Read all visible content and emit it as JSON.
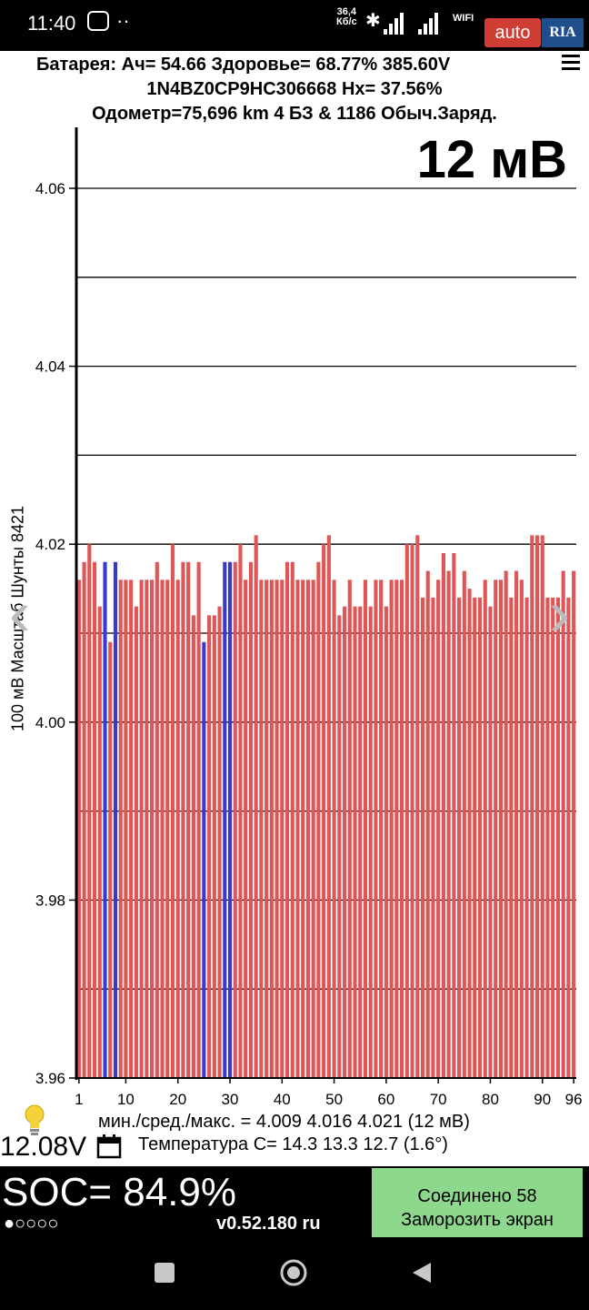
{
  "status_bar": {
    "time": "11:40",
    "dots": "··",
    "net_speed_value": "36,4",
    "net_speed_unit": "Кб/с",
    "wifi_label": "WIFI",
    "watermark_auto": "auto",
    "watermark_ria": "RIA"
  },
  "header": {
    "line1": "Батарея:  Ач= 54.66  Здоровье= 68.77%   385.60V",
    "line2": "1N4BZ0CP9HC306668   Hx= 37.56%",
    "line3": "Одометр=75,696 km 4 БЗ & 1186 Обыч.Заряд."
  },
  "chart_label": "12 мВ",
  "y_axis_label": "100 мВ Масштаб  Шунты 8421",
  "stats": {
    "minmax": "мин./сред./макс. = 4.009 4.016 4.021  (12 мВ)",
    "voltage": "12.08V",
    "temperature": "Температура С= 14.3  13.3  12.7  (1.6°)"
  },
  "bottom": {
    "soc": "SOC= 84.9%",
    "soc_indicator": "●○○○○",
    "version": "v0.52.180 ru",
    "button_line1": "Соединено 58",
    "button_line2": "Заморозить экран"
  },
  "colors": {
    "bar_normal": "#e05555",
    "bar_highlight": "#3a3ac8",
    "button_bg": "#8ed88e"
  },
  "chart_data": {
    "type": "bar",
    "ylim": [
      3.96,
      4.065
    ],
    "yticks": [
      "3.96",
      "3.98",
      "4.00",
      "4.02",
      "4.04",
      "4.06"
    ],
    "xticks": [
      "1",
      "10",
      "20",
      "30",
      "40",
      "50",
      "60",
      "70",
      "80",
      "90",
      "96"
    ],
    "values": [
      4.016,
      4.018,
      4.02,
      4.018,
      4.013,
      4.018,
      4.009,
      4.018,
      4.016,
      4.016,
      4.016,
      4.013,
      4.016,
      4.016,
      4.016,
      4.018,
      4.016,
      4.016,
      4.02,
      4.016,
      4.018,
      4.018,
      4.012,
      4.018,
      4.009,
      4.012,
      4.012,
      4.013,
      4.018,
      4.018,
      4.018,
      4.02,
      4.016,
      4.018,
      4.021,
      4.016,
      4.016,
      4.016,
      4.016,
      4.016,
      4.018,
      4.018,
      4.016,
      4.016,
      4.016,
      4.016,
      4.018,
      4.02,
      4.021,
      4.016,
      4.012,
      4.013,
      4.016,
      4.013,
      4.013,
      4.016,
      4.013,
      4.016,
      4.016,
      4.013,
      4.016,
      4.016,
      4.016,
      4.02,
      4.02,
      4.021,
      4.014,
      4.017,
      4.014,
      4.016,
      4.019,
      4.017,
      4.019,
      4.014,
      4.017,
      4.015,
      4.014,
      4.014,
      4.016,
      4.013,
      4.016,
      4.016,
      4.017,
      4.014,
      4.017,
      4.016,
      4.014,
      4.021,
      4.021,
      4.021,
      4.014,
      4.014,
      4.014,
      4.017,
      4.014,
      4.017
    ],
    "highlighted_cells": [
      6,
      8,
      25,
      29,
      30
    ]
  }
}
